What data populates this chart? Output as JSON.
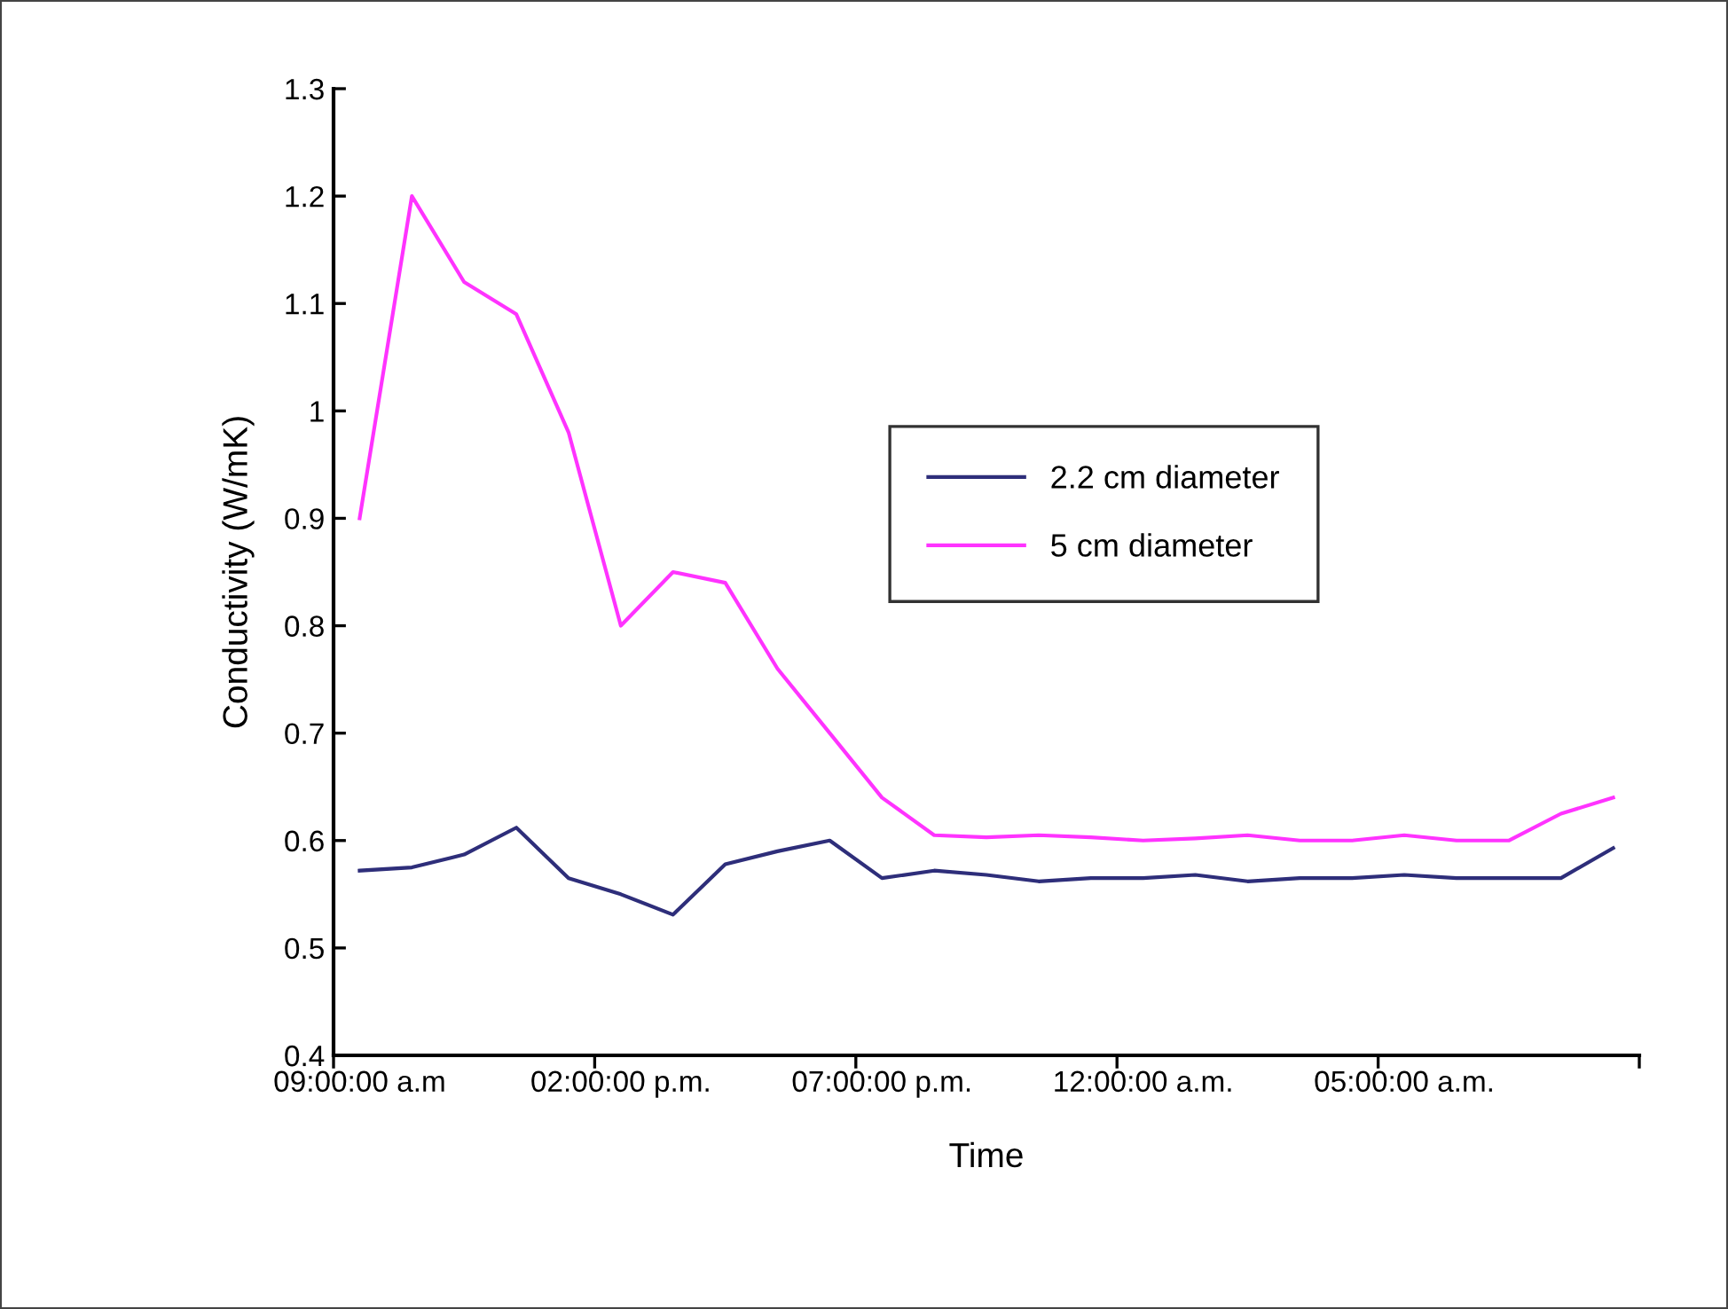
{
  "chart_data": {
    "type": "line",
    "xlabel": "Time",
    "ylabel": "Conductivity (W/mK)",
    "categories": [
      "09:00:00 a.m",
      null,
      null,
      null,
      null,
      "02:00:00 p.m.",
      null,
      null,
      null,
      null,
      "07:00:00 p.m.",
      null,
      null,
      null,
      null,
      "12:00:00 a.m.",
      null,
      null,
      null,
      null,
      "05:00:00 a.m.",
      null,
      null,
      null,
      null
    ],
    "series": [
      {
        "name": "2.2 cm diameter",
        "color": "#2e2e7a",
        "values": [
          0.572,
          0.575,
          0.587,
          0.612,
          0.565,
          0.55,
          0.531,
          0.578,
          0.59,
          0.6,
          0.565,
          0.572,
          0.568,
          0.562,
          0.565,
          0.565,
          0.568,
          0.562,
          0.565,
          0.565,
          0.568,
          0.565,
          0.565,
          0.565,
          0.593
        ]
      },
      {
        "name": "5 cm diameter",
        "color": "#ff33ff",
        "values": [
          0.9,
          1.2,
          1.12,
          1.09,
          0.98,
          0.8,
          0.85,
          0.84,
          0.76,
          0.7,
          0.64,
          0.605,
          0.603,
          0.605,
          0.603,
          0.6,
          0.602,
          0.605,
          0.6,
          0.6,
          0.605,
          0.6,
          0.6,
          0.625,
          0.64
        ]
      }
    ],
    "ylim": [
      0.4,
      1.3
    ],
    "yticks": [
      0.4,
      0.5,
      0.6,
      0.7,
      0.8,
      0.9,
      1,
      1.1,
      1.2,
      1.3
    ],
    "grid": false,
    "legend": "center",
    "marker": "none",
    "line_style": "solid"
  }
}
